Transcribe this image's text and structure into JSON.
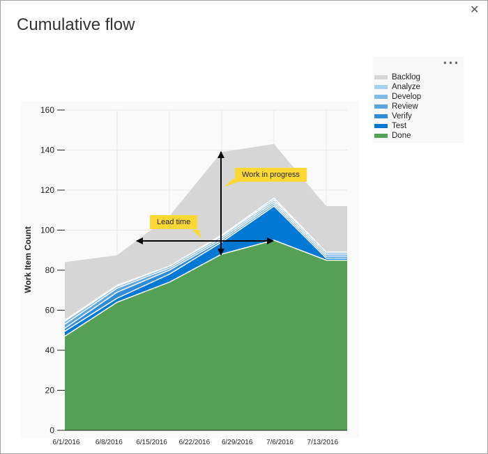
{
  "title": "Cumulative flow",
  "close_icon": "close-icon",
  "more_icon": "more-options-icon",
  "chart_data": {
    "type": "area",
    "stacked": true,
    "ylabel": "Work Item Count",
    "ylim": [
      0,
      160
    ],
    "yticks": [
      0,
      20,
      40,
      60,
      80,
      100,
      120,
      140,
      160
    ],
    "x_tick_labels": [
      "6/1/2016",
      "6/8/2016",
      "6/15/2016",
      "6/22/2016",
      "6/29/2016",
      "7/6/2016",
      "7/13/2016"
    ],
    "grid": true,
    "legend_position": "right",
    "series": [
      {
        "name": "Backlog",
        "color": "#d6d6d6",
        "values": [
          29,
          15,
          25,
          41.5,
          27,
          23,
          23
        ]
      },
      {
        "name": "Analyze",
        "color": "#a8d1ef",
        "values": [
          0.5,
          0.5,
          0,
          0.5,
          1,
          0,
          0
        ]
      },
      {
        "name": "Develop",
        "color": "#80bbe8",
        "values": [
          1.5,
          1,
          1,
          1,
          1,
          1,
          1
        ]
      },
      {
        "name": "Review",
        "color": "#5aa5e0",
        "values": [
          2,
          2,
          1,
          1,
          1,
          1,
          1
        ]
      },
      {
        "name": "Verify",
        "color": "#2f8cd8",
        "values": [
          1.5,
          3,
          2,
          1,
          1,
          1,
          1
        ]
      },
      {
        "name": "Test",
        "color": "#0078d4",
        "values": [
          2.5,
          2,
          4,
          6,
          17,
          1,
          1
        ]
      },
      {
        "name": "Done",
        "color": "#55a055",
        "values": [
          47,
          64,
          74,
          88,
          95,
          85,
          85
        ]
      }
    ],
    "annotations": [
      {
        "text": "Lead time"
      },
      {
        "text": "Work in progress"
      }
    ]
  }
}
